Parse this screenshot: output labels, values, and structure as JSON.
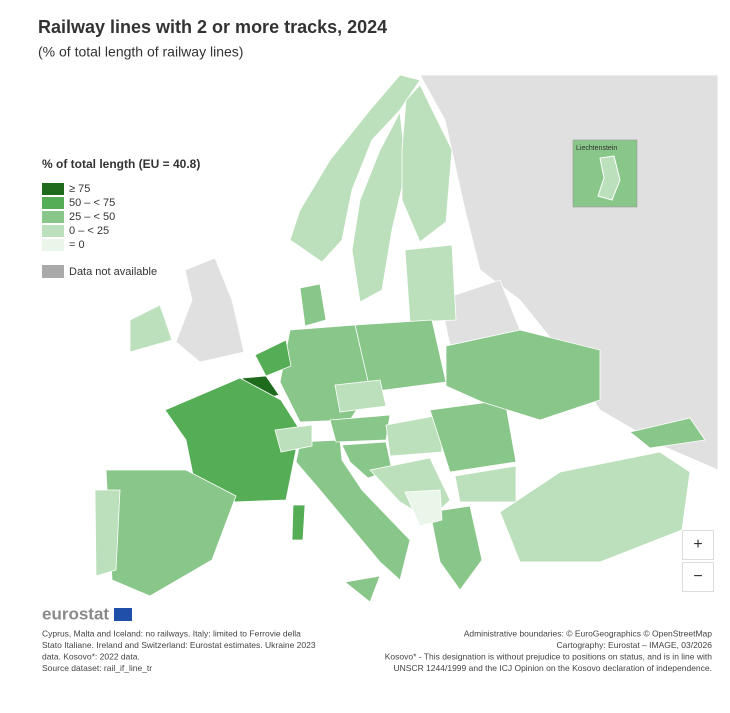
{
  "header": {
    "title": "Railway lines with 2 or more tracks, 2024",
    "subtitle": "(% of total length of railway lines)"
  },
  "legend": {
    "title": "% of total length (EU = 40.8)",
    "items": [
      {
        "label": "≥ 75",
        "color": "#1e6b1e"
      },
      {
        "label": "50 – < 75",
        "color": "#55ad55"
      },
      {
        "label": "25 – < 50",
        "color": "#89c689"
      },
      {
        "label": "0 – < 25",
        "color": "#bce0bc"
      },
      {
        "label": "= 0",
        "color": "#eaf6ea"
      }
    ],
    "not_available": {
      "label": "Data not available",
      "color": "#a9a9a9"
    }
  },
  "inset": {
    "label": "Liechtenstein"
  },
  "controls": {
    "zoom_in": "+",
    "zoom_out": "−"
  },
  "logo": "eurostat",
  "footnotes": [
    "Cyprus, Malta and Iceland: no railways. Italy: limited to Ferrovie della",
    "Stato Italiane. Ireland and Switzerland: Eurostat estimates. Ukraine 2023",
    "data. Kosovo*: 2022 data.",
    "Source dataset: rail_if_line_tr"
  ],
  "attribution": [
    "Administrative boundaries: © EuroGeographics © OpenStreetMap",
    "Cartography: Eurostat – IMAGE, 03/2026",
    "Kosovo* - This designation is without prejudice to positions on status, and is in line with",
    "UNSCR 1244/1999 and the ICJ Opinion on the Kosovo declaration of independence."
  ]
}
